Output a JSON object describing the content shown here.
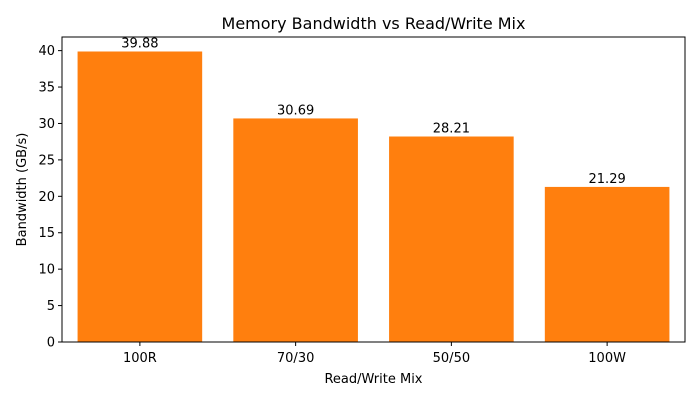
{
  "chart_data": {
    "type": "bar",
    "title": "Memory Bandwidth vs Read/Write Mix",
    "xlabel": "Read/Write Mix",
    "ylabel": "Bandwidth (GB/s)",
    "categories": [
      "100R",
      "70/30",
      "50/50",
      "100W"
    ],
    "values": [
      39.88,
      30.69,
      28.21,
      21.29
    ],
    "data_labels": [
      "39.88",
      "30.69",
      "28.21",
      "21.29"
    ],
    "ylim": [
      0,
      41.87
    ],
    "yticks": [
      0,
      5,
      10,
      15,
      20,
      25,
      30,
      35,
      40
    ],
    "grid": false,
    "bar_color": "#ff7f0e"
  }
}
